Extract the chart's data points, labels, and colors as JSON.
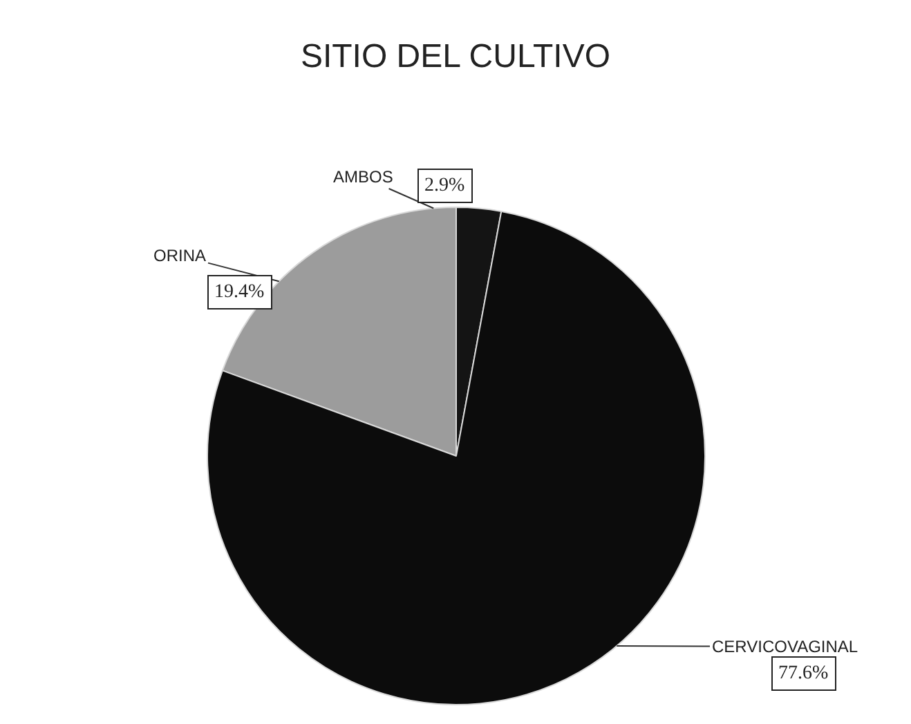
{
  "chart_data": {
    "type": "pie",
    "title": "SITIO DEL CULTIVO",
    "categories": [
      "AMBOS",
      "ORINA",
      "CERVICOVAGINAL"
    ],
    "values": [
      2.9,
      19.4,
      77.6
    ],
    "value_labels": [
      "2.9%",
      "19.4%",
      "77.6%"
    ],
    "colors": [
      "#141414",
      "#9c9c9c",
      "#0c0c0c"
    ]
  }
}
